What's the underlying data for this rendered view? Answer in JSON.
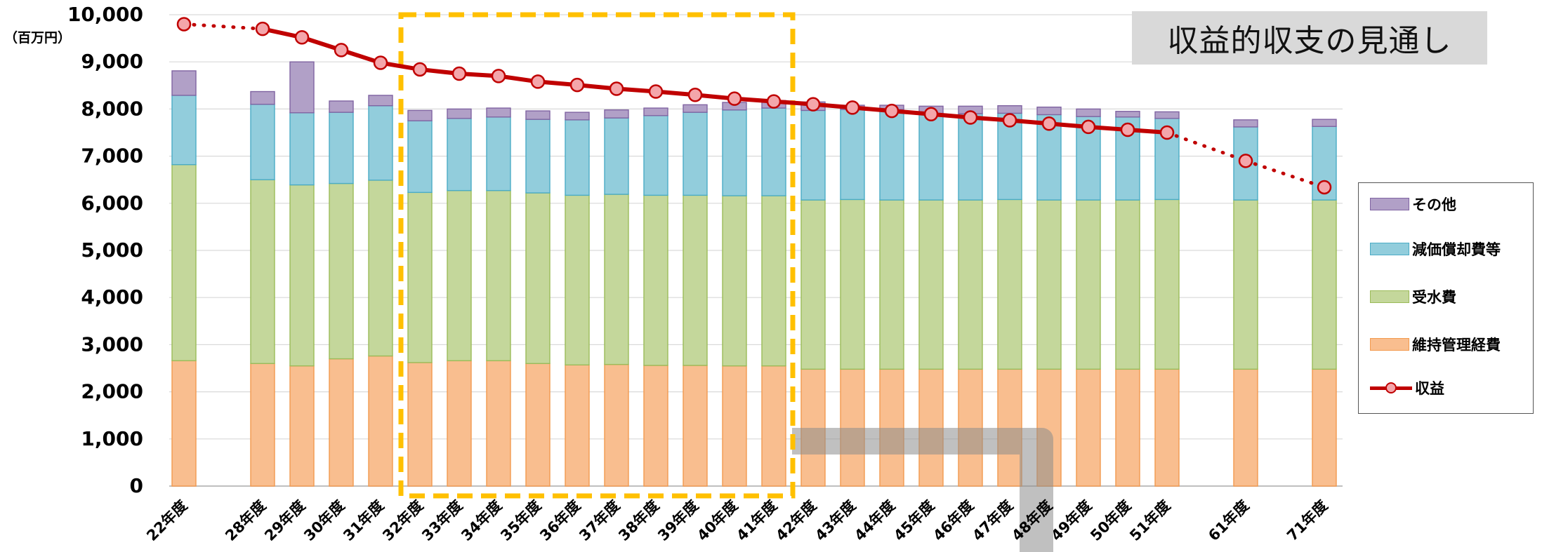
{
  "chart_data": {
    "type": "bar",
    "title": "収益的収支の見通し",
    "ylabel": "（百万円）",
    "ylim": [
      0,
      10000
    ],
    "yticks": [
      "0",
      "1,000",
      "2,000",
      "3,000",
      "4,000",
      "5,000",
      "6,000",
      "7,000",
      "8,000",
      "9,000",
      "10,000"
    ],
    "grid": true,
    "legend_position": "right",
    "categories": [
      "22年度",
      "28年度",
      "29年度",
      "30年度",
      "31年度",
      "32年度",
      "33年度",
      "34年度",
      "35年度",
      "36年度",
      "37年度",
      "38年度",
      "39年度",
      "40年度",
      "41年度",
      "42年度",
      "43年度",
      "44年度",
      "45年度",
      "46年度",
      "47年度",
      "48年度",
      "49年度",
      "50年度",
      "51年度",
      "61年度",
      "71年度"
    ],
    "category_positions": [
      0,
      2,
      3,
      4,
      5,
      6,
      7,
      8,
      9,
      10,
      11,
      12,
      13,
      14,
      15,
      16,
      17,
      18,
      19,
      20,
      21,
      22,
      23,
      24,
      25,
      27,
      29
    ],
    "series": [
      {
        "name": "維持管理経費",
        "kind": "bar",
        "color": "#f9be8f",
        "stroke": "#f39a4e",
        "values": [
          2660,
          2600,
          2550,
          2700,
          2760,
          2620,
          2660,
          2660,
          2600,
          2570,
          2580,
          2560,
          2560,
          2550,
          2550,
          2480,
          2480,
          2480,
          2480,
          2480,
          2480,
          2480,
          2480,
          2480,
          2480,
          2480,
          2480
        ]
      },
      {
        "name": "受水費",
        "kind": "bar",
        "color": "#c4d79b",
        "stroke": "#9bbb59",
        "values": [
          4160,
          3900,
          3840,
          3720,
          3730,
          3610,
          3610,
          3610,
          3620,
          3600,
          3610,
          3610,
          3610,
          3610,
          3610,
          3590,
          3600,
          3590,
          3590,
          3590,
          3600,
          3590,
          3590,
          3590,
          3600,
          3590,
          3590
        ]
      },
      {
        "name": "減価償却費等",
        "kind": "bar",
        "color": "#92cddc",
        "stroke": "#4bacc6",
        "values": [
          1470,
          1600,
          1530,
          1510,
          1580,
          1520,
          1530,
          1560,
          1560,
          1600,
          1620,
          1690,
          1760,
          1820,
          1860,
          1900,
          1910,
          1920,
          1830,
          1830,
          1830,
          1810,
          1770,
          1760,
          1720,
          1550,
          1560
        ]
      },
      {
        "name": "その他",
        "kind": "bar",
        "color": "#b1a0c7",
        "stroke": "#8064a2",
        "values": [
          520,
          270,
          1080,
          240,
          220,
          220,
          200,
          190,
          180,
          160,
          170,
          160,
          160,
          160,
          160,
          180,
          90,
          90,
          160,
          160,
          160,
          160,
          160,
          120,
          140,
          150,
          150
        ]
      },
      {
        "name": "収益",
        "kind": "line",
        "color": "#c00000",
        "marker_fill": "#f4a6ab",
        "values": [
          9800,
          9700,
          9520,
          9250,
          8980,
          8840,
          8750,
          8700,
          8580,
          8510,
          8430,
          8370,
          8300,
          8220,
          8160,
          8100,
          8030,
          7960,
          7890,
          7820,
          7760,
          7690,
          7620,
          7560,
          7500,
          6900,
          6340
        ],
        "dotted_segments": [
          [
            0,
            1
          ],
          [
            24,
            25
          ],
          [
            25,
            26
          ]
        ]
      }
    ],
    "highlight_range": [
      "32年度",
      "41年度"
    ]
  }
}
